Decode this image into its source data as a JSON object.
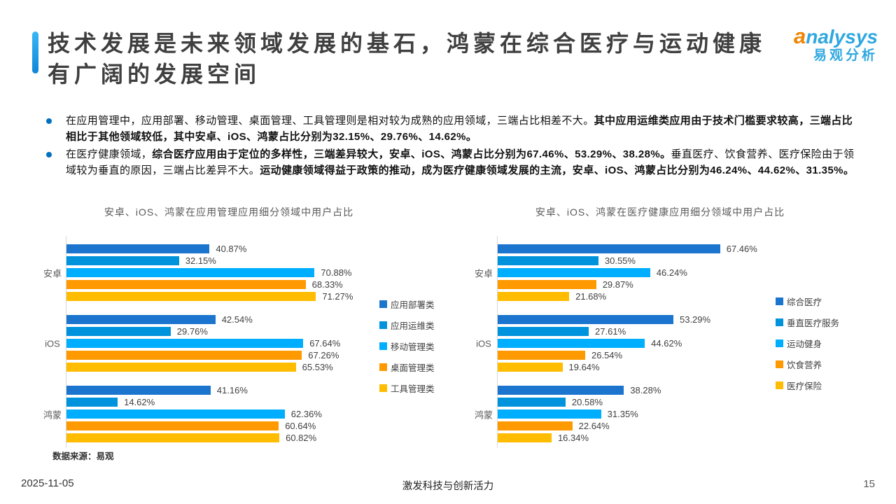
{
  "page": {
    "title_line1": "技术发展是未来领域发展的基石，鸿蒙在综合医疗与运动健康",
    "title_line2": "有广阔的发展空间",
    "logo": {
      "brand_first_letter": "a",
      "brand_rest": "nalysys",
      "brand_cn": "易观分析"
    },
    "bullets": [
      {
        "segments": [
          {
            "text": "在应用管理中，应用部署、移动管理、桌面管理、工具管理则是相对较为成熟的应用领域，三端占比相差不大。",
            "bold": false
          },
          {
            "text": "其中应用运维类应用由于技术门槛要求较高，三端占比相比于其他领域较低，其中安卓、iOS、鸿蒙占比分别为32.15%、29.76%、14.62%。",
            "bold": true
          }
        ]
      },
      {
        "segments": [
          {
            "text": "在医疗健康领域，",
            "bold": false
          },
          {
            "text": "综合医疗应用由于定位的多样性，三端差异较大，安卓、iOS、鸿蒙占比分别为67.46%、53.29%、38.28%。",
            "bold": true
          },
          {
            "text": "垂直医疗、饮食营养、医疗保险由于领域较为垂直的原因，三端占比差异不大。",
            "bold": false
          },
          {
            "text": "运动健康领域得益于政策的推动，成为医疗健康领域发展的主流，安卓、iOS、鸿蒙占比分别为46.24%、44.62%、31.35%。",
            "bold": true
          }
        ]
      }
    ],
    "source_note": "数据来源：易观",
    "footer": {
      "date": "2025-11-05",
      "slogan": "激发科技与创新活力",
      "page_number": "15"
    }
  },
  "colors": {
    "accent_blue": "#1e9de8",
    "bullet_blue": "#0070c0",
    "logo_blue": "#2ea7e0",
    "logo_orange": "#f08300",
    "series_palette": [
      "#1b75ce",
      "#0093dd",
      "#00aeff",
      "#ff9900",
      "#ffbc00"
    ]
  },
  "chart_data": [
    {
      "type": "bar",
      "orientation": "horizontal",
      "title": "安卓、iOS、鸿蒙在应用管理应用细分领域中用户占比",
      "categories": [
        "安卓",
        "iOS",
        "鸿蒙"
      ],
      "series": [
        {
          "name": "应用部署类",
          "color": "#1b75ce",
          "values": [
            40.87,
            42.54,
            41.16
          ]
        },
        {
          "name": "应用运维类",
          "color": "#0093dd",
          "values": [
            32.15,
            29.76,
            14.62
          ]
        },
        {
          "name": "移动管理类",
          "color": "#00aeff",
          "values": [
            70.88,
            67.64,
            62.36
          ]
        },
        {
          "name": "桌面管理类",
          "color": "#ff9900",
          "values": [
            68.33,
            67.26,
            60.64
          ]
        },
        {
          "name": "工具管理类",
          "color": "#ffbc00",
          "values": [
            71.27,
            65.53,
            60.82
          ]
        }
      ],
      "value_suffix": "%",
      "xlim": [
        0,
        100
      ],
      "grid": false,
      "legend_position": "right"
    },
    {
      "type": "bar",
      "orientation": "horizontal",
      "title": "安卓、iOS、鸿蒙在医疗健康应用细分领域中用户占比",
      "categories": [
        "安卓",
        "iOS",
        "鸿蒙"
      ],
      "series": [
        {
          "name": "综合医疗",
          "color": "#1b75ce",
          "values": [
            67.46,
            53.29,
            38.28
          ]
        },
        {
          "name": "垂直医疗服务",
          "color": "#0093dd",
          "values": [
            30.55,
            27.61,
            20.58
          ]
        },
        {
          "name": "运动健身",
          "color": "#00aeff",
          "values": [
            46.24,
            44.62,
            31.35
          ]
        },
        {
          "name": "饮食营养",
          "color": "#ff9900",
          "values": [
            29.87,
            26.54,
            22.64
          ]
        },
        {
          "name": "医疗保险",
          "color": "#ffbc00",
          "values": [
            21.68,
            19.64,
            16.34
          ]
        }
      ],
      "value_suffix": "%",
      "xlim": [
        0,
        100
      ],
      "grid": false,
      "legend_position": "right"
    }
  ]
}
